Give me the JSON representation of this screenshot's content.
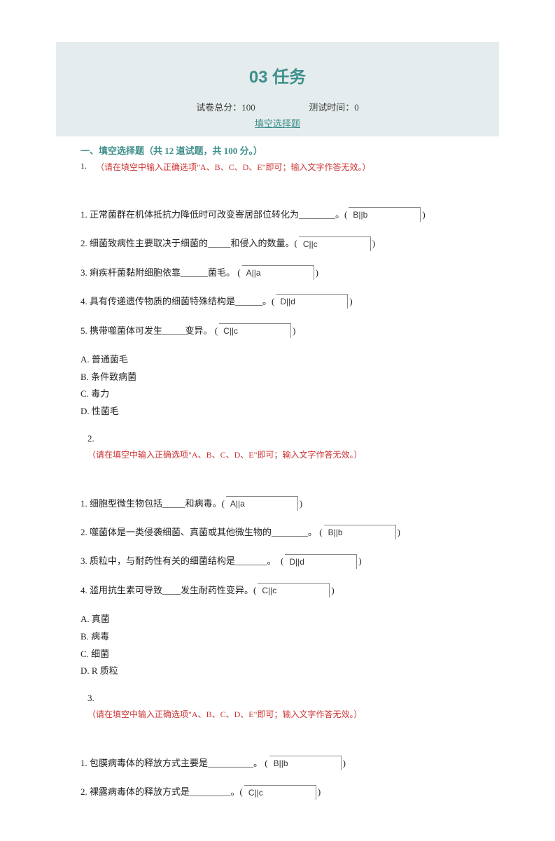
{
  "title": "03 任务",
  "meta": {
    "score_label": "试卷总分：",
    "score": "100",
    "time_label": "测试时间：",
    "time": "0"
  },
  "link_text": "填空选择题",
  "section_heading": "一、填空选择题（共  12  道试题，共  100  分。）",
  "hint_text": "（请在填空中输入正确选项\"A、B、C、D、E\"即可；输入文字作答无效。）",
  "groups": [
    {
      "num": "1.",
      "items": [
        {
          "label": "1.",
          "pre": "正常菌群在机体抵抗力降低时可改变寄居部位转化为________。(",
          "ans": "B||b",
          "post": ")"
        },
        {
          "label": "2.",
          "pre": "细菌致病性主要取决于细菌的_____和侵入的数量。(",
          "ans": "C||c",
          "post": ")"
        },
        {
          "label": "3.",
          "pre": "痢疾杆菌黏附细胞依靠______菌毛。 (",
          "ans": "A||a",
          "post": ")"
        },
        {
          "label": "4.",
          "pre": "具有传递遗传物质的细菌特殊结构是______。(",
          "ans": "D||d",
          "post": ")"
        },
        {
          "label": "5.",
          "pre": "携带噬菌体可发生_____变异。 (",
          "ans": "C||c",
          "post": ")"
        }
      ],
      "options": [
        "A.  普通菌毛",
        "B.  条件致病菌",
        "C.  毒力",
        "D.  性菌毛"
      ]
    },
    {
      "num": "2.",
      "items": [
        {
          "label": "1.",
          "pre": "细胞型微生物包括_____和病毒。(",
          "ans": "A||a",
          "post": ")"
        },
        {
          "label": "2.",
          "pre": "噬菌体是一类侵袭细菌、真菌或其他微生物的________。 (",
          "ans": "B||b",
          "post": ")"
        },
        {
          "label": "3.",
          "pre": "质粒中，与耐药性有关的细菌结构是_______。  (",
          "ans": "D||d",
          "post": ")"
        },
        {
          "label": "4.",
          "pre": "滥用抗生素可导致____发生耐药性变异。(",
          "ans": "C||c",
          "post": ")"
        }
      ],
      "options": [
        "A.  真菌",
        "B.  病毒",
        "C.  细菌",
        "D. R 质粒"
      ]
    },
    {
      "num": "3.",
      "items": [
        {
          "label": "1.",
          "pre": "包膜病毒体的释放方式主要是__________。 (",
          "ans": "B||b",
          "post": ")"
        },
        {
          "label": "2.",
          "pre": "裸露病毒体的释放方式是_________。(",
          "ans": "C||c",
          "post": ")"
        }
      ],
      "options": []
    }
  ]
}
